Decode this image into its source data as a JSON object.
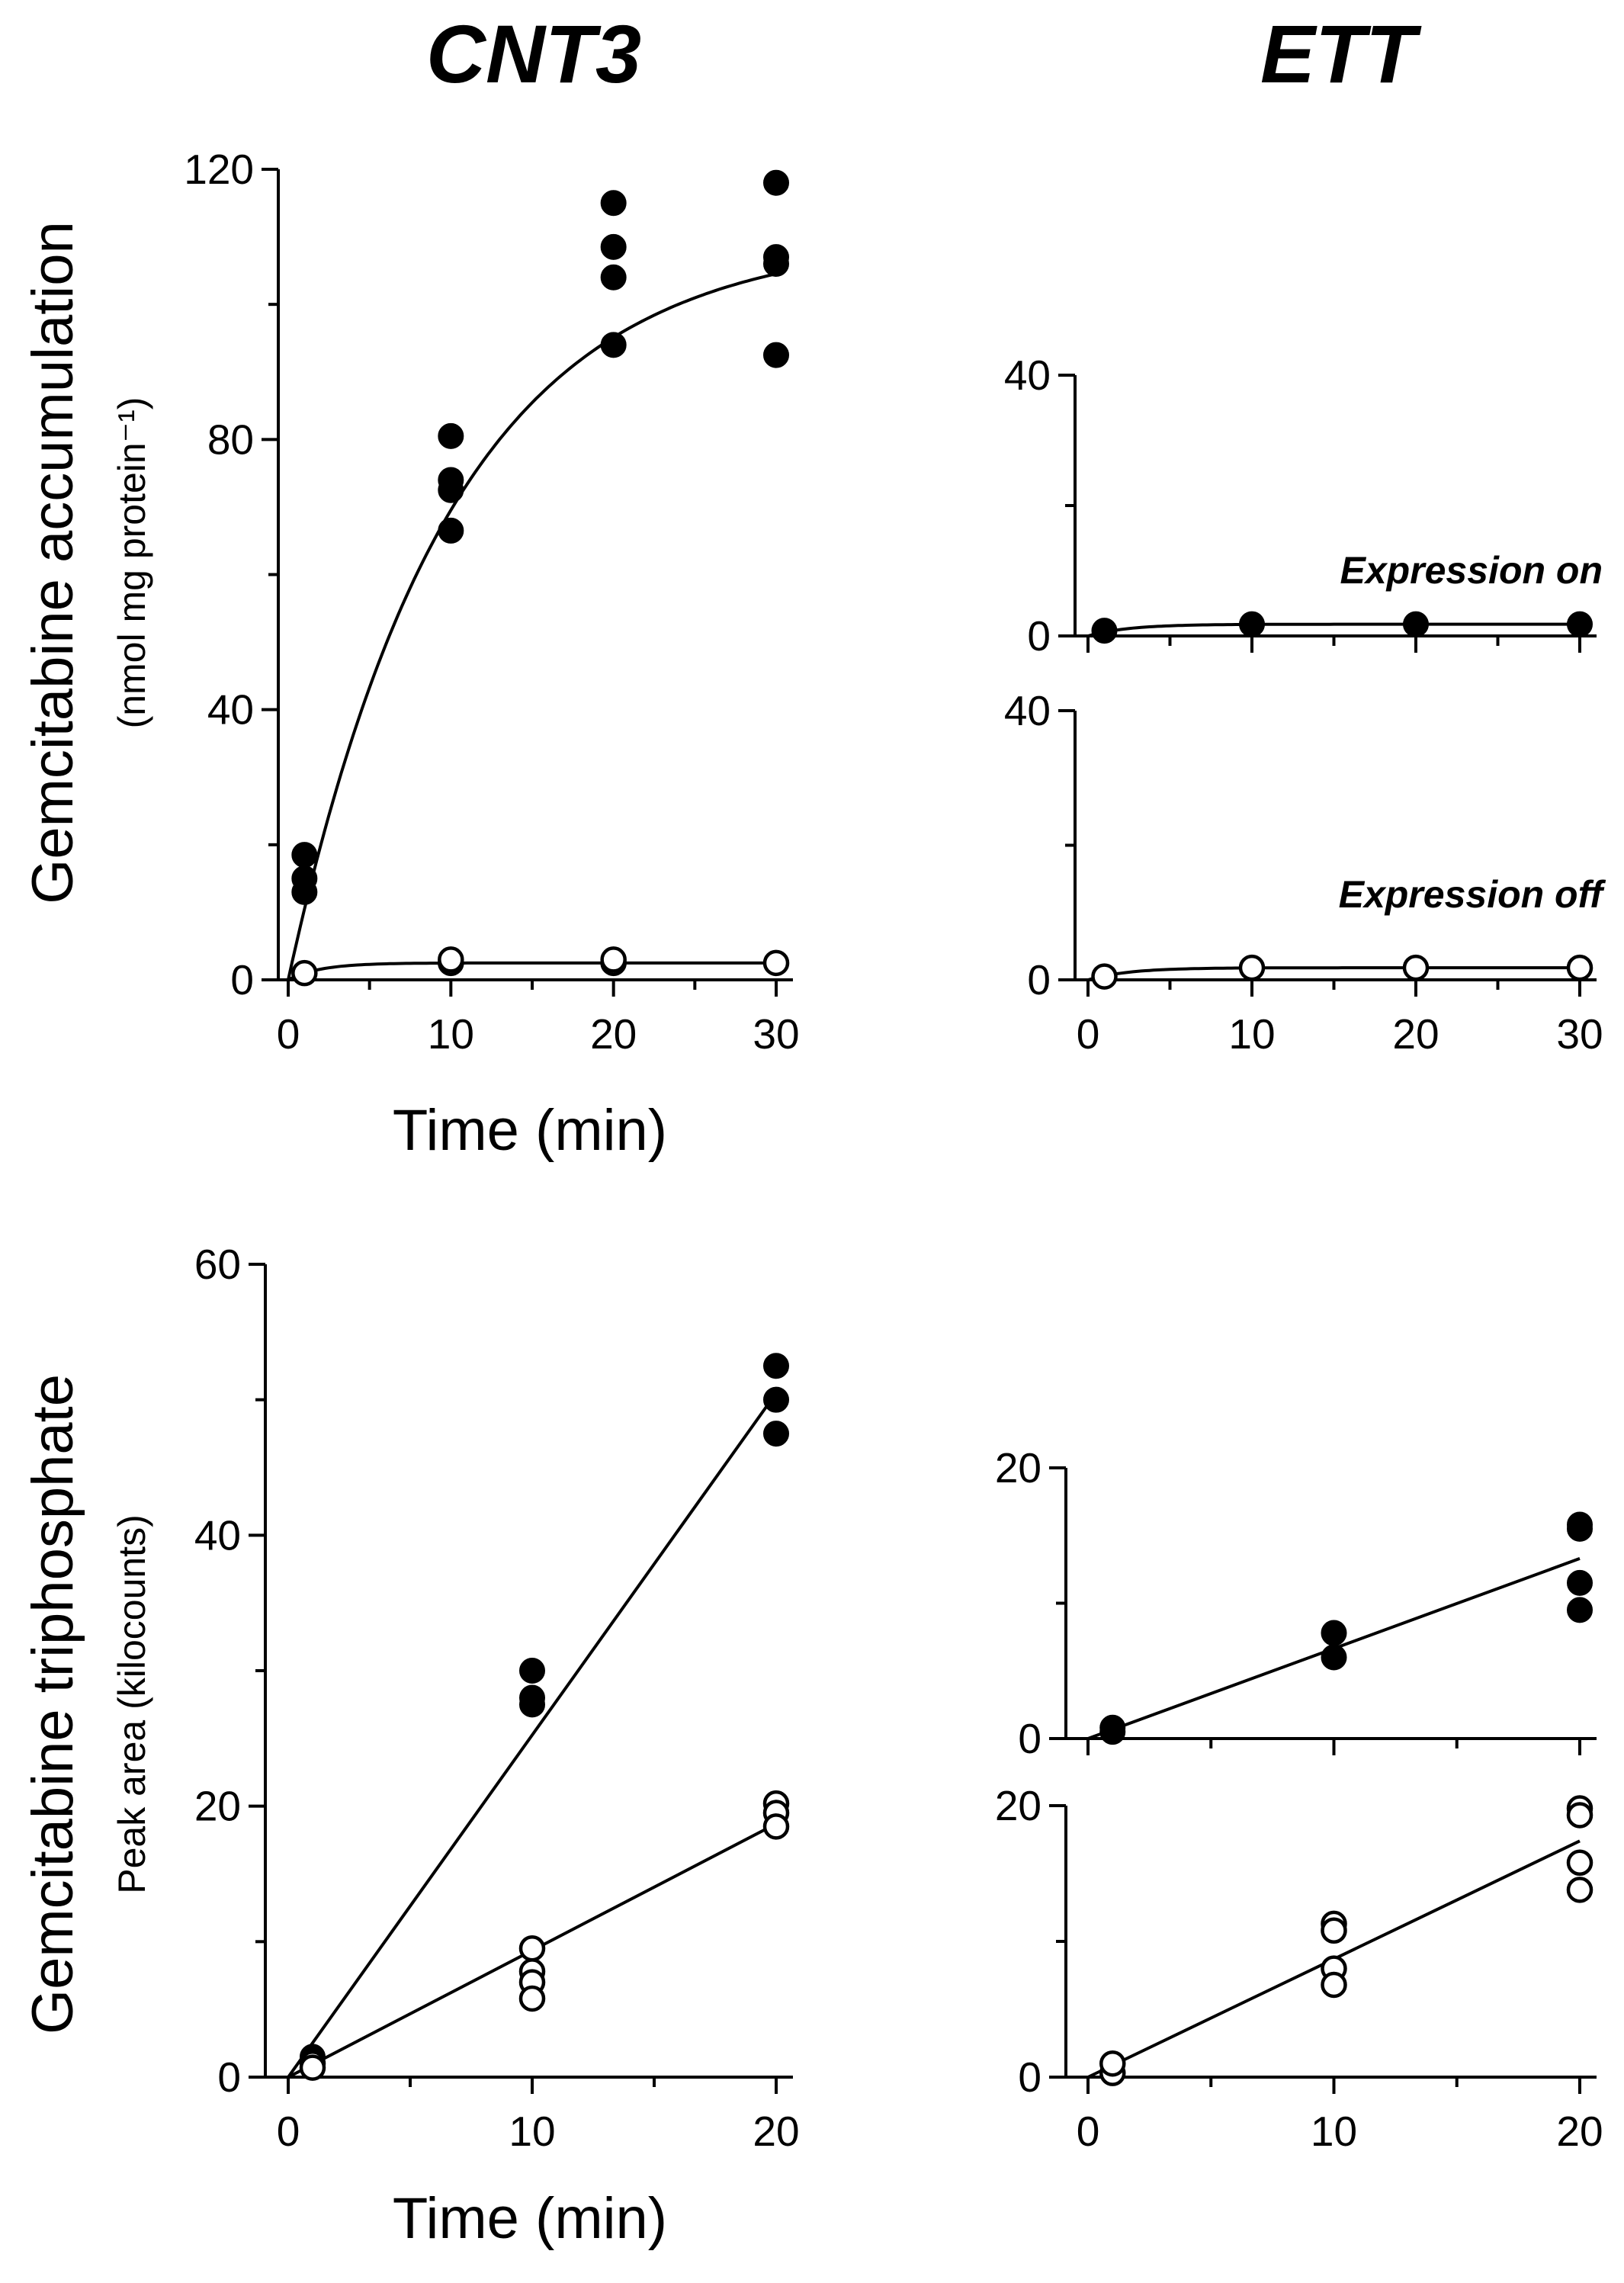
{
  "figure": {
    "col_titles": [
      "CNT3",
      "ETT"
    ],
    "top_ylabel": "Gemcitabine accumulation",
    "top_ylabel_sub": "(nmol mg protein⁻¹)",
    "bottom_ylabel": "Gemcitabine triphosphate",
    "bottom_ylabel_sub": "Peak area (kilocounts)",
    "xlabel": "Time (min)",
    "annot_on": "Expression on",
    "annot_off": "Expression off"
  },
  "colors": {
    "filled": "#000000",
    "open_fill": "#ffffff",
    "line": "#000000"
  },
  "chart_data": [
    {
      "id": "cnt3-accumulation",
      "type": "scatter",
      "title": "CNT3",
      "xlabel": "Time (min)",
      "ylabel": "Gemcitabine accumulation (nmol mg protein⁻¹)",
      "xlim": [
        0,
        30
      ],
      "ylim": [
        0,
        120
      ],
      "xticks": [
        0,
        10,
        20,
        30
      ],
      "yticks": [
        0,
        40,
        80,
        120
      ],
      "series": [
        {
          "name": "Expression on",
          "marker": "filled",
          "points": [
            [
              1,
              18.5
            ],
            [
              1,
              15
            ],
            [
              1,
              13
            ],
            [
              10,
              80.5
            ],
            [
              10,
              74
            ],
            [
              10,
              72.5
            ],
            [
              10,
              66.5
            ],
            [
              20,
              115
            ],
            [
              20,
              108.5
            ],
            [
              20,
              104
            ],
            [
              20,
              94
            ],
            [
              30,
              118
            ],
            [
              30,
              107
            ],
            [
              30,
              106
            ],
            [
              30,
              92.5
            ]
          ],
          "fit": {
            "kind": "exp",
            "amax": 110,
            "k": 0.1
          }
        },
        {
          "name": "Expression off",
          "marker": "open",
          "points": [
            [
              1,
              1
            ],
            [
              10,
              2.5
            ],
            [
              10,
              3
            ],
            [
              20,
              2.5
            ],
            [
              20,
              3
            ],
            [
              30,
              2.5
            ]
          ],
          "fit": {
            "kind": "exp",
            "amax": 2.5,
            "k": 0.5
          }
        }
      ]
    },
    {
      "id": "ett-accumulation-on",
      "type": "scatter",
      "title": "ETT",
      "annotation": "Expression on",
      "xlim": [
        0,
        30
      ],
      "ylim": [
        0,
        40
      ],
      "yticks": [
        0,
        40
      ],
      "series": [
        {
          "name": "Expression on",
          "marker": "filled",
          "points": [
            [
              1,
              0.8
            ],
            [
              10,
              1.8
            ],
            [
              20,
              1.8
            ],
            [
              30,
              1.8
            ]
          ],
          "fit": {
            "kind": "exp",
            "amax": 1.8,
            "k": 0.4
          }
        }
      ]
    },
    {
      "id": "ett-accumulation-off",
      "type": "scatter",
      "annotation": "Expression off",
      "xlabel": "Time (min)",
      "xlim": [
        0,
        30
      ],
      "ylim": [
        0,
        40
      ],
      "xticks": [
        0,
        10,
        20,
        30
      ],
      "yticks": [
        0,
        40
      ],
      "series": [
        {
          "name": "Expression off",
          "marker": "open",
          "points": [
            [
              1,
              0.5
            ],
            [
              10,
              1.8
            ],
            [
              20,
              1.8
            ],
            [
              30,
              1.8
            ]
          ],
          "fit": {
            "kind": "exp",
            "amax": 1.8,
            "k": 0.4
          }
        }
      ]
    },
    {
      "id": "cnt3-triphosphate",
      "type": "scatter",
      "xlabel": "Time (min)",
      "ylabel": "Gemcitabine triphosphate Peak area (kilocounts)",
      "xlim": [
        0,
        20
      ],
      "ylim": [
        0,
        60
      ],
      "xticks": [
        0,
        10,
        20
      ],
      "yticks": [
        0,
        20,
        40,
        60
      ],
      "series": [
        {
          "name": "Expression on",
          "marker": "filled",
          "points": [
            [
              1,
              1.5
            ],
            [
              1,
              1
            ],
            [
              10,
              30
            ],
            [
              10,
              28
            ],
            [
              10,
              27.5
            ],
            [
              20,
              52.5
            ],
            [
              20,
              50
            ],
            [
              20,
              47.5
            ]
          ],
          "fit": {
            "kind": "linear",
            "from": [
              0,
              0
            ],
            "to": [
              20,
              50.5
            ]
          }
        },
        {
          "name": "Expression off",
          "marker": "open",
          "points": [
            [
              1,
              1
            ],
            [
              1,
              0.7
            ],
            [
              10,
              9.5
            ],
            [
              10,
              7.8
            ],
            [
              10,
              7
            ],
            [
              10,
              5.8
            ],
            [
              20,
              20.2
            ],
            [
              20,
              19.5
            ],
            [
              20,
              18.5
            ]
          ],
          "fit": {
            "kind": "linear",
            "from": [
              0,
              0
            ],
            "to": [
              20,
              18.7
            ]
          }
        }
      ]
    },
    {
      "id": "ett-triphosphate-on",
      "type": "scatter",
      "xlim": [
        0,
        20
      ],
      "ylim": [
        0,
        20
      ],
      "yticks": [
        0,
        20
      ],
      "series": [
        {
          "name": "Expression on",
          "marker": "filled",
          "points": [
            [
              1,
              0.5
            ],
            [
              1,
              0.8
            ],
            [
              10,
              7.8
            ],
            [
              10,
              6
            ],
            [
              20,
              15.8
            ],
            [
              20,
              15.5
            ],
            [
              20,
              11.5
            ],
            [
              20,
              9.5
            ]
          ],
          "fit": {
            "kind": "linear",
            "from": [
              0,
              0
            ],
            "to": [
              20,
              13.3
            ]
          }
        }
      ]
    },
    {
      "id": "ett-triphosphate-off",
      "type": "scatter",
      "xlabel": "Time (min)",
      "xlim": [
        0,
        20
      ],
      "ylim": [
        0,
        20
      ],
      "xticks": [
        0,
        10,
        20
      ],
      "yticks": [
        0,
        20
      ],
      "series": [
        {
          "name": "Expression off",
          "marker": "open",
          "points": [
            [
              1,
              0.3
            ],
            [
              1,
              1
            ],
            [
              10,
              11.3
            ],
            [
              10,
              10.8
            ],
            [
              10,
              8
            ],
            [
              10,
              6.8
            ],
            [
              20,
              19.8
            ],
            [
              20,
              19.3
            ],
            [
              20,
              15.8
            ],
            [
              20,
              13.8
            ]
          ],
          "fit": {
            "kind": "linear",
            "from": [
              0,
              0
            ],
            "to": [
              20,
              17.4
            ]
          }
        }
      ]
    }
  ]
}
